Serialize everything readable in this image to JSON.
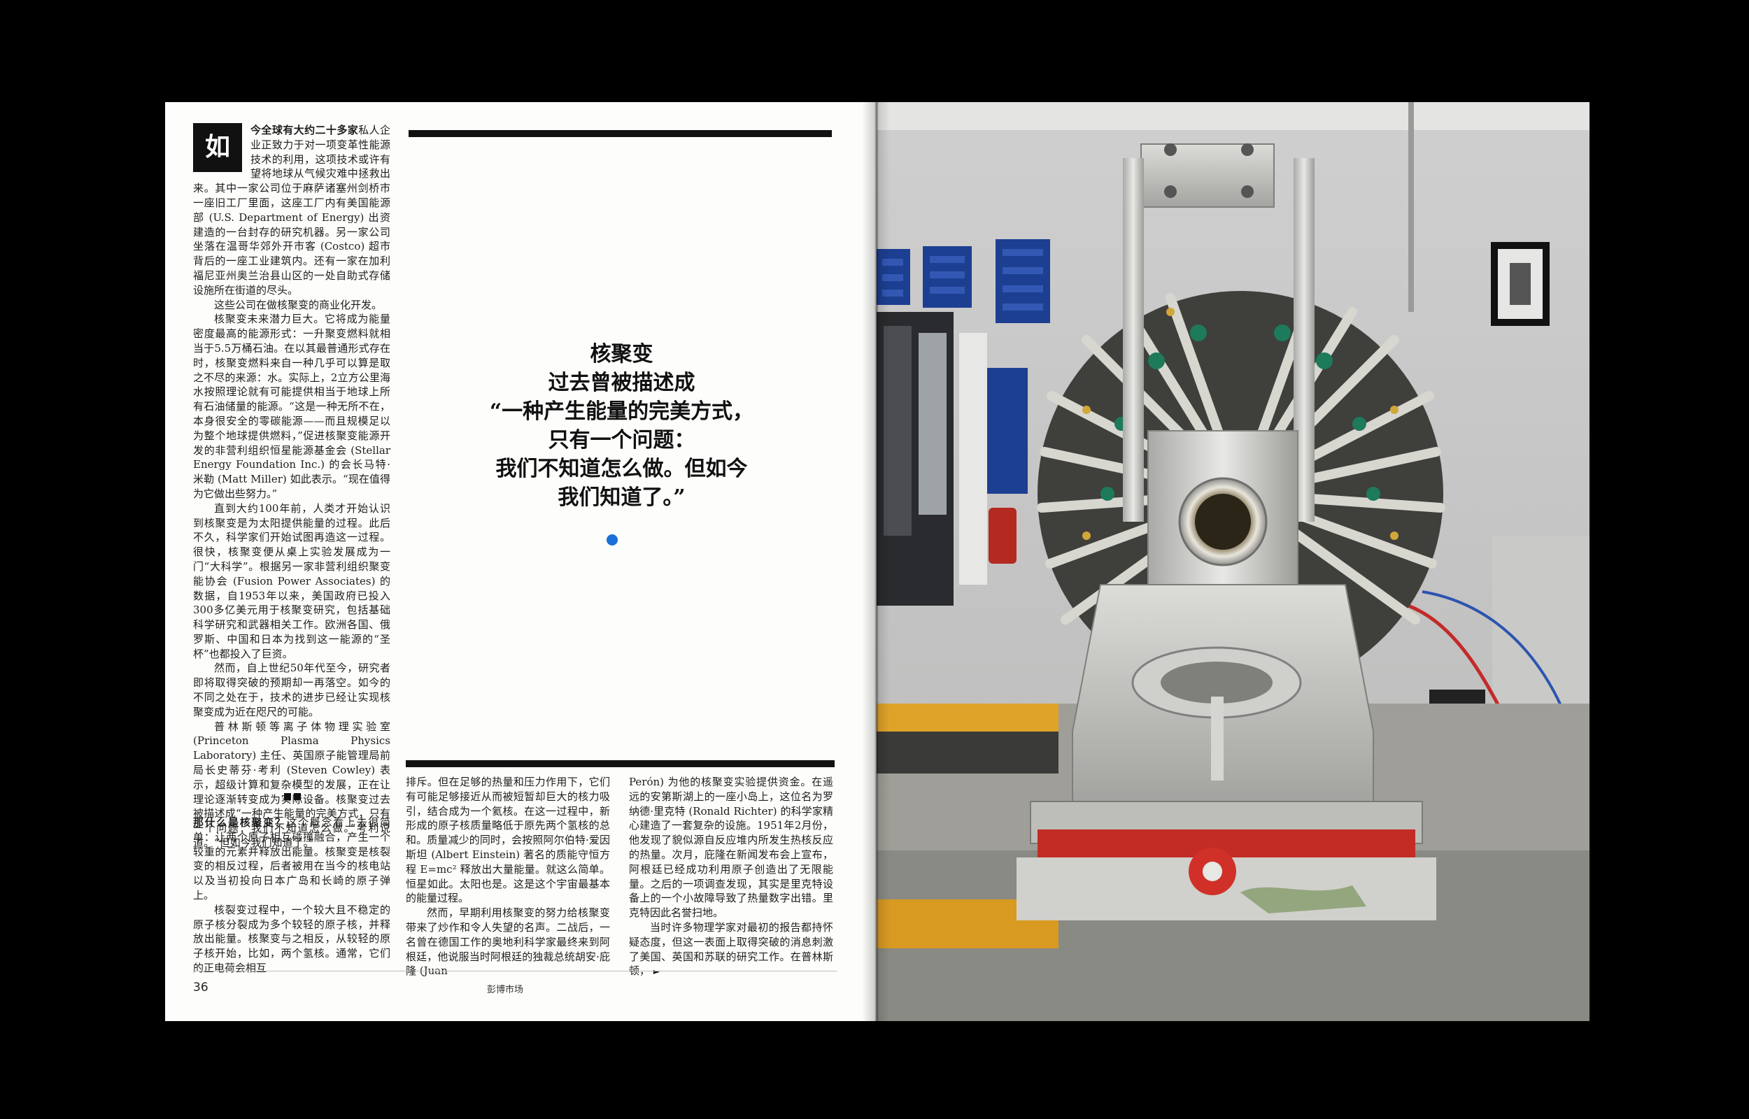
{
  "left_page": {
    "dropcap": "如",
    "para1_lead": "今全球有大约二十多家",
    "para1_body": "私人企业正致力于对一项变革性能源技术的利用，这项技术或许有望将地球从气候灾难中拯救出来。其中一家公司位于麻萨诸塞州剑桥市一座旧工厂里面，这座工厂内有美国能源部 (U.S. Department of Energy) 出资建造的一台封存的研究机器。另一家公司坐落在温哥华郊外开市客 (Costco) 超市背后的一座工业建筑内。还有一家在加利福尼亚州奥兰治县山区的一处自助式存储设施所在街道的尽头。",
    "para2": "这些公司在做核聚变的商业化开发。",
    "para3": "核聚变未来潜力巨大。它将成为能量密度最高的能源形式：一升聚变燃料就相当于5.5万桶石油。在以其最普通形式存在时，核聚变燃料来自一种几乎可以算是取之不尽的来源：水。实际上，2立方公里海水按照理论就有可能提供相当于地球上所有石油储量的能源。“这是一种无所不在，本身很安全的零碳能源——而且规模足以为整个地球提供燃料，”促进核聚变能源开发的非营利组织恒星能源基金会 (Stellar Energy Foundation Inc.) 的会长马特·米勒 (Matt Miller) 如此表示。“现在值得为它做出些努力。”",
    "para4": "直到大约100年前，人类才开始认识到核聚变是为太阳提供能量的过程。此后不久，科学家们开始试图再造这一过程。很快，核聚变便从桌上实验发展成为一门“大科学”。根据另一家非营利组织聚变能协会 (Fusion Power Associates) 的数据，自1953年以来，美国政府已投入300多亿美元用于核聚变研究，包括基础科学研究和武器相关工作。欧洲各国、俄罗斯、中国和日本为找到这一能源的“圣杯”也都投入了巨资。",
    "para5": "然而，自上世纪50年代至今，研究者即将取得突破的预期却一再落空。如今的不同之处在于，技术的进步已经让实现核聚变成为近在咫尺的可能。",
    "para6": "普林斯顿等离子体物理实验室 (Princeton Plasma Physics Laboratory) 主任、英国原子能管理局前局长史蒂芬·考利 (Steven Cowley) 表示，超级计算和复杂模型的发展，正在让理论逐渐转变成为实际设备。核聚变过去被描述成“一种产生能量的完美方式，只有一个问题：我们不知道怎么做。”考利说道。“但如今我们知道了。”",
    "section2_lead": "那什么是核聚变？",
    "section2_body": "这个概念看上去很简单：让两个原子相互碰撞融合，产生一个较重的元素并释放出能量。核聚变是核裂变的相反过程，后者被用在当今的核电站以及当初投向日本广岛和长崎的原子弹上。",
    "section2_p2": "核裂变过程中，一个较大且不稳定的原子核分裂成为多个较轻的原子核，并释放出能量。核聚变与之相反，从较轻的原子核开始，比如，两个氢核。通常，它们的正电荷会相互",
    "col2": "排斥。但在足够的热量和压力作用下，它们有可能足够接近从而被短暂却巨大的核力吸引，结合成为一个氦核。在这一过程中，新形成的原子核质量略低于原先两个氢核的总和。质量减少的同时，会按照阿尔伯特·爱因斯坦 (Albert Einstein) 著名的质能守恒方程 E=mc² 释放出大量能量。就这么简单。恒星如此。太阳也是。这是这个宇宙最基本的能量过程。",
    "col2_p2": "然而，早期利用核聚变的努力给核聚变带来了炒作和令人失望的名声。二战后，一名曾在德国工作的奥地利科学家最终来到阿根廷，他说服当时阿根廷的独裁总统胡安·庇隆 (Juan",
    "col3": "Perón) 为他的核聚变实验提供资金。在遥远的安第斯湖上的一座小岛上，这位名为罗纳德·里克特 (Ronald Richter) 的科学家精心建造了一套复杂的设施。1951年2月份，他发现了貌似源自反应堆内所发生热核反应的热量。次月，庇隆在新闻发布会上宣布，阿根廷已经成功利用原子创造出了无限能量。之后的一项调查发现，其实是里克特设备上的一个小故障导致了热量数字出错。里克特因此名誉扫地。",
    "col3_p2": "当时许多物理学家对最初的报告都持怀疑态度，但这一表面上取得突破的消息刺激了美国、英国和苏联的研究工作。在普林斯顿，",
    "continue_arrow": "►",
    "pullquote_lines": [
      "核聚变",
      "过去曾被描述成",
      "“一种产生能量的完美方式，",
      "只有一个问题：",
      "我们不知道怎么做。但如今",
      "我们知道了。”"
    ],
    "folio": "36",
    "publication": "彭博市场",
    "accent_color": "#1a6fd8"
  }
}
